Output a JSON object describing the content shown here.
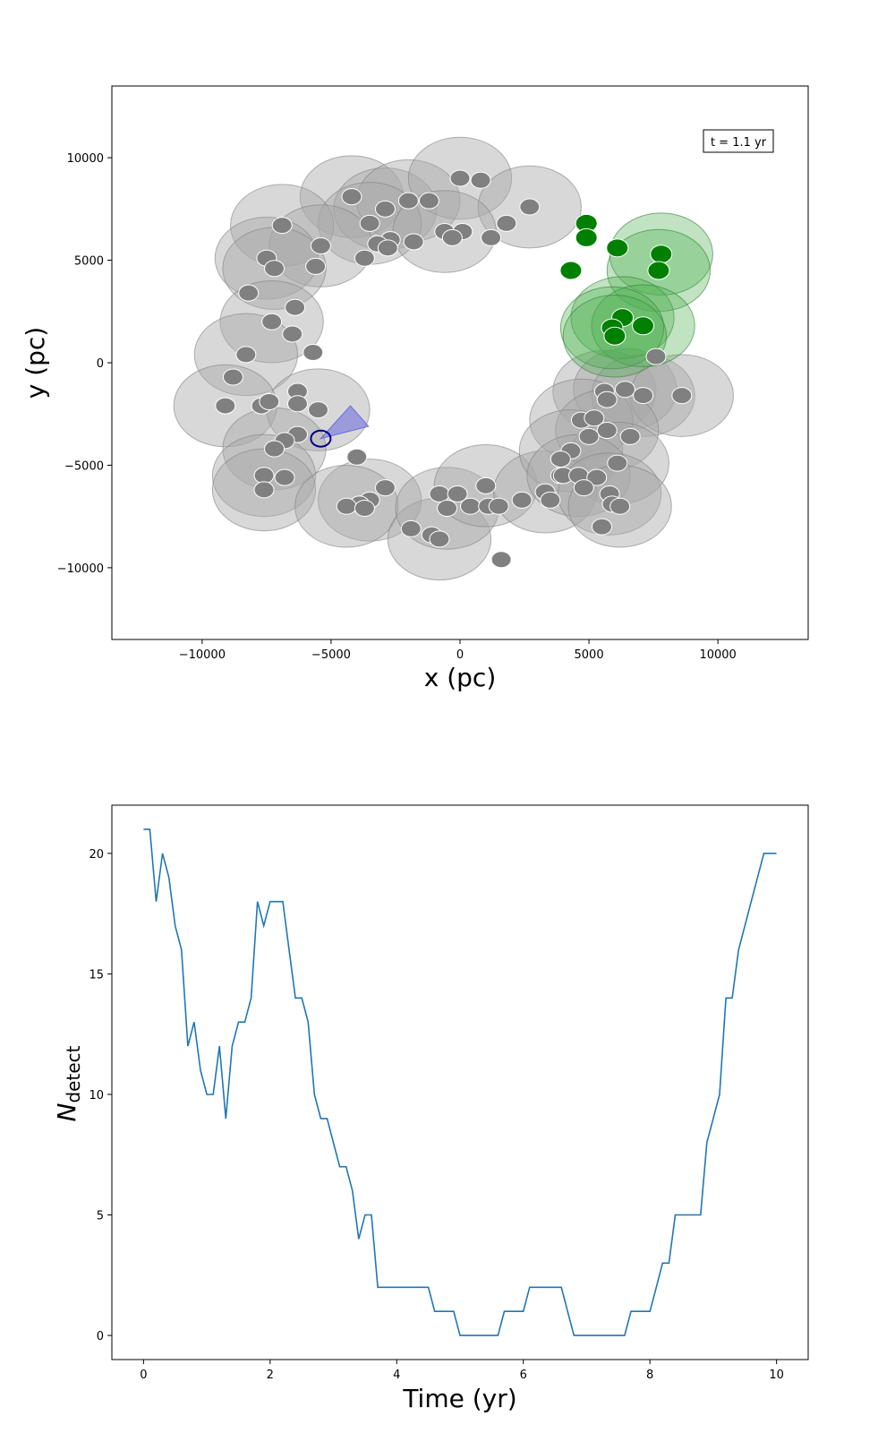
{
  "chart_data": [
    {
      "type": "scatter",
      "title": "",
      "xlabel": "x (pc)",
      "ylabel": "y (pc)",
      "xlim": [
        -13500,
        13500
      ],
      "ylim": [
        -13500,
        13500
      ],
      "xticks": [
        -10000,
        -5000,
        0,
        5000,
        10000
      ],
      "xtick_labels": [
        "−10000",
        "−5000",
        "0",
        "5000",
        "10000"
      ],
      "yticks": [
        -10000,
        -5000,
        0,
        5000,
        10000
      ],
      "ytick_labels": [
        "−10000",
        "−5000",
        "0",
        "5000",
        "10000"
      ],
      "annotation": "t = 1.1 yr",
      "annotation_placement": "top-right",
      "grid": false,
      "colors": {
        "undetected_source": "#808080",
        "detected_source": "#008000",
        "undetected_halo": "#a9a9a9",
        "detected_halo": "#4caf50",
        "beam": "#6a6adf",
        "observer": "#00008b"
      },
      "halo_radius_pc": 2000,
      "observer": {
        "x": -5400,
        "y": -3700
      },
      "beam": {
        "apex_x": -5400,
        "apex_y": -3700,
        "points": [
          [
            -4250,
            -2100
          ],
          [
            -3550,
            -3100
          ]
        ]
      },
      "detected": [
        {
          "x": 4900,
          "y": 6800
        },
        {
          "x": 4900,
          "y": 6100
        },
        {
          "x": 6100,
          "y": 5600
        },
        {
          "x": 4300,
          "y": 4500,
          "halo": false
        },
        {
          "x": 7800,
          "y": 5300,
          "halo": true
        },
        {
          "x": 7700,
          "y": 4500,
          "halo": true
        },
        {
          "x": 6300,
          "y": 2200,
          "halo": true
        },
        {
          "x": 7100,
          "y": 1800,
          "halo": true
        },
        {
          "x": 5900,
          "y": 1700,
          "halo": true
        },
        {
          "x": 6000,
          "y": 1300,
          "halo": true
        }
      ],
      "undetected": [
        {
          "x": -4200,
          "y": 8100,
          "halo": true
        },
        {
          "x": -2900,
          "y": 7500,
          "halo": true
        },
        {
          "x": -2000,
          "y": 7900,
          "halo": true
        },
        {
          "x": -1200,
          "y": 7900,
          "halo": false
        },
        {
          "x": 0,
          "y": 9000,
          "halo": true
        },
        {
          "x": 800,
          "y": 8900,
          "halo": false
        },
        {
          "x": 2700,
          "y": 7600,
          "halo": true
        },
        {
          "x": -3500,
          "y": 6800,
          "halo": true
        },
        {
          "x": -600,
          "y": 6400,
          "halo": true
        },
        {
          "x": 100,
          "y": 6400,
          "halo": false
        },
        {
          "x": 1800,
          "y": 6800,
          "halo": false
        },
        {
          "x": 1200,
          "y": 6100,
          "halo": false
        },
        {
          "x": -300,
          "y": 6100,
          "halo": false
        },
        {
          "x": -2700,
          "y": 6000,
          "halo": false
        },
        {
          "x": -3200,
          "y": 5800,
          "halo": false
        },
        {
          "x": -2800,
          "y": 5600,
          "halo": false
        },
        {
          "x": -1800,
          "y": 5900,
          "halo": false
        },
        {
          "x": -3700,
          "y": 5100,
          "halo": false
        },
        {
          "x": -6900,
          "y": 6700,
          "halo": true
        },
        {
          "x": -5400,
          "y": 5700,
          "halo": true
        },
        {
          "x": -7500,
          "y": 5100,
          "halo": true
        },
        {
          "x": -7200,
          "y": 4600,
          "halo": true
        },
        {
          "x": -5600,
          "y": 4700,
          "halo": false
        },
        {
          "x": -8200,
          "y": 3400,
          "halo": false
        },
        {
          "x": -6400,
          "y": 2700,
          "halo": false
        },
        {
          "x": -7300,
          "y": 2000,
          "halo": true
        },
        {
          "x": -6500,
          "y": 1400,
          "halo": false
        },
        {
          "x": -8300,
          "y": 400,
          "halo": true
        },
        {
          "x": -5700,
          "y": 500,
          "halo": false
        },
        {
          "x": -8800,
          "y": -700,
          "halo": false
        },
        {
          "x": -9100,
          "y": -2100,
          "halo": true
        },
        {
          "x": -7700,
          "y": -2100,
          "halo": false
        },
        {
          "x": -7400,
          "y": -1900,
          "halo": false
        },
        {
          "x": -6300,
          "y": -1400,
          "halo": false
        },
        {
          "x": -6300,
          "y": -2000,
          "halo": false
        },
        {
          "x": -5500,
          "y": -2300,
          "halo": true
        },
        {
          "x": -6300,
          "y": -3500,
          "halo": false
        },
        {
          "x": -6800,
          "y": -3800,
          "halo": false
        },
        {
          "x": -7200,
          "y": -4200,
          "halo": true
        },
        {
          "x": -4000,
          "y": -4600,
          "halo": false
        },
        {
          "x": -7600,
          "y": -5500,
          "halo": true
        },
        {
          "x": -6800,
          "y": -5600,
          "halo": false
        },
        {
          "x": -7600,
          "y": -6200,
          "halo": true
        },
        {
          "x": -2900,
          "y": -6100,
          "halo": false
        },
        {
          "x": -3500,
          "y": -6700,
          "halo": true
        },
        {
          "x": -3900,
          "y": -6900,
          "halo": false
        },
        {
          "x": -4400,
          "y": -7000,
          "halo": true
        },
        {
          "x": -3700,
          "y": -7100,
          "halo": false
        },
        {
          "x": -1900,
          "y": -8100,
          "halo": false
        },
        {
          "x": -1100,
          "y": -8400,
          "halo": false
        },
        {
          "x": -800,
          "y": -8600,
          "halo": true
        },
        {
          "x": -800,
          "y": -6400,
          "halo": false
        },
        {
          "x": -100,
          "y": -6400,
          "halo": false
        },
        {
          "x": -500,
          "y": -7100,
          "halo": true
        },
        {
          "x": 400,
          "y": -7000,
          "halo": false
        },
        {
          "x": 1000,
          "y": -6000,
          "halo": true
        },
        {
          "x": 1100,
          "y": -7000,
          "halo": false
        },
        {
          "x": 1500,
          "y": -7000,
          "halo": false
        },
        {
          "x": 1600,
          "y": -9600,
          "halo": false
        },
        {
          "x": 2400,
          "y": -6700,
          "halo": false
        },
        {
          "x": 3300,
          "y": -6300,
          "halo": true
        },
        {
          "x": 3500,
          "y": -6700,
          "halo": false
        },
        {
          "x": 3900,
          "y": -5500,
          "halo": false
        },
        {
          "x": 5600,
          "y": -1400,
          "halo": true
        },
        {
          "x": 5700,
          "y": -1800,
          "halo": false
        },
        {
          "x": 6400,
          "y": -1300,
          "halo": true
        },
        {
          "x": 7100,
          "y": -1600,
          "halo": true
        },
        {
          "x": 8600,
          "y": -1600,
          "halo": true
        },
        {
          "x": 4700,
          "y": -2800,
          "halo": true
        },
        {
          "x": 5200,
          "y": -2700,
          "halo": false
        },
        {
          "x": 5700,
          "y": -3300,
          "halo": true
        },
        {
          "x": 5000,
          "y": -3600,
          "halo": false
        },
        {
          "x": 6600,
          "y": -3600,
          "halo": false
        },
        {
          "x": 4300,
          "y": -4300,
          "halo": true
        },
        {
          "x": 3900,
          "y": -4700,
          "halo": false
        },
        {
          "x": 6100,
          "y": -4900,
          "halo": true
        },
        {
          "x": 4000,
          "y": -5500,
          "halo": false
        },
        {
          "x": 4600,
          "y": -5500,
          "halo": true
        },
        {
          "x": 5300,
          "y": -5600,
          "halo": false
        },
        {
          "x": 4800,
          "y": -6100,
          "halo": false
        },
        {
          "x": 5800,
          "y": -6400,
          "halo": true
        },
        {
          "x": 5900,
          "y": -6900,
          "halo": false
        },
        {
          "x": 6200,
          "y": -7000,
          "halo": true
        },
        {
          "x": 5500,
          "y": -8000,
          "halo": false
        },
        {
          "x": 7600,
          "y": 300,
          "halo": false
        }
      ]
    },
    {
      "type": "line",
      "title": "",
      "xlabel": "Time (yr)",
      "ylabel_base": "N",
      "ylabel_sub": "detect",
      "xlim": [
        -0.5,
        10.5
      ],
      "ylim": [
        -1,
        22
      ],
      "xticks": [
        0,
        2,
        4,
        6,
        8,
        10
      ],
      "xtick_labels": [
        "0",
        "2",
        "4",
        "6",
        "8",
        "10"
      ],
      "yticks": [
        0,
        5,
        10,
        15,
        20
      ],
      "ytick_labels": [
        "0",
        "5",
        "10",
        "15",
        "20"
      ],
      "grid": false,
      "colors": {
        "line": "#1f77b4"
      },
      "series": [
        {
          "x": [
            0,
            0.1,
            0.2,
            0.3,
            0.4,
            0.5,
            0.6,
            0.7,
            0.8,
            0.9,
            1.0,
            1.1,
            1.2,
            1.3,
            1.4,
            1.5,
            1.6,
            1.7,
            1.8,
            1.9,
            2.0,
            2.1,
            2.2,
            2.3,
            2.4,
            2.5,
            2.6,
            2.7,
            2.8,
            2.9,
            3.0,
            3.1,
            3.2,
            3.3,
            3.4,
            3.5,
            3.6,
            3.7,
            3.8,
            3.9,
            4.0,
            4.1,
            4.2,
            4.3,
            4.4,
            4.5,
            4.6,
            4.7,
            4.8,
            4.9,
            5.0,
            5.1,
            5.2,
            5.3,
            5.4,
            5.5,
            5.6,
            5.7,
            5.8,
            5.9,
            6.0,
            6.1,
            6.2,
            6.3,
            6.4,
            6.5,
            6.6,
            6.7,
            6.8,
            6.9,
            7.0,
            7.1,
            7.2,
            7.3,
            7.4,
            7.5,
            7.6,
            7.7,
            7.8,
            7.9,
            8.0,
            8.1,
            8.2,
            8.3,
            8.4,
            8.5,
            8.6,
            8.7,
            8.8,
            8.9,
            9.0,
            9.1,
            9.2,
            9.3,
            9.4,
            9.5,
            9.6,
            9.7,
            9.8,
            9.9,
            10.0
          ],
          "y": [
            21,
            21,
            18,
            20,
            19,
            17,
            16,
            12,
            13,
            11,
            10,
            10,
            12,
            9,
            12,
            13,
            13,
            14,
            18,
            17,
            18,
            18,
            18,
            16,
            14,
            14,
            13,
            10,
            9,
            9,
            8,
            7,
            7,
            6,
            4,
            5,
            5,
            2,
            2,
            2,
            2,
            2,
            2,
            2,
            2,
            2,
            1,
            1,
            1,
            1,
            0,
            0,
            0,
            0,
            0,
            0,
            0,
            1,
            1,
            1,
            1,
            2,
            2,
            2,
            2,
            2,
            2,
            1,
            0,
            0,
            0,
            0,
            0,
            0,
            0,
            0,
            0,
            1,
            1,
            1,
            1,
            2,
            3,
            3,
            5,
            5,
            5,
            5,
            5,
            8,
            9,
            10,
            14,
            14,
            16,
            17,
            18,
            19,
            20,
            20,
            20
          ]
        }
      ]
    }
  ]
}
